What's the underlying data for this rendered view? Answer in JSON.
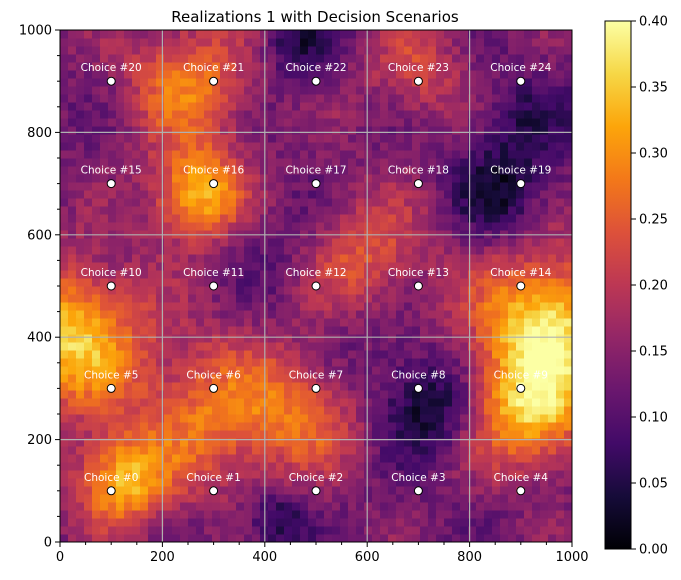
{
  "chart_data": {
    "type": "heatmap",
    "title": "Realizations 1 with Decision Scenarios",
    "xlim": [
      0,
      1000
    ],
    "ylim": [
      0,
      1000
    ],
    "xticks": [
      0,
      200,
      400,
      600,
      800,
      1000
    ],
    "yticks": [
      0,
      200,
      400,
      600,
      800,
      1000
    ],
    "grid": true,
    "colormap": "inferno",
    "colorbar": {
      "range": [
        0.0,
        0.4
      ],
      "ticks": [
        "0.00",
        "0.05",
        "0.10",
        "0.15",
        "0.20",
        "0.25",
        "0.30",
        "0.35",
        "0.40"
      ]
    },
    "hotspots": [
      {
        "x": 270,
        "y": 680,
        "r": 90,
        "value": 0.34
      },
      {
        "x": 20,
        "y": 400,
        "r": 140,
        "value": 0.35
      },
      {
        "x": 950,
        "y": 420,
        "r": 140,
        "value": 0.38
      },
      {
        "x": 120,
        "y": 120,
        "r": 90,
        "value": 0.33
      },
      {
        "x": 920,
        "y": 250,
        "r": 110,
        "value": 0.32
      },
      {
        "x": 300,
        "y": 250,
        "r": 150,
        "value": 0.27
      },
      {
        "x": 600,
        "y": 560,
        "r": 120,
        "value": 0.24
      },
      {
        "x": 250,
        "y": 900,
        "r": 120,
        "value": 0.28
      },
      {
        "x": 700,
        "y": 920,
        "r": 100,
        "value": 0.22
      },
      {
        "x": 480,
        "y": 250,
        "r": 110,
        "value": 0.24
      }
    ],
    "coldspots": [
      {
        "x": 720,
        "y": 270,
        "r": 90,
        "value": 0.02
      },
      {
        "x": 860,
        "y": 680,
        "r": 90,
        "value": 0.04
      },
      {
        "x": 420,
        "y": 40,
        "r": 60,
        "value": 0.03
      },
      {
        "x": 460,
        "y": 980,
        "r": 70,
        "value": 0.05
      },
      {
        "x": 900,
        "y": 820,
        "r": 100,
        "value": 0.07
      },
      {
        "x": 420,
        "y": 600,
        "r": 100,
        "value": 0.1
      },
      {
        "x": 620,
        "y": 380,
        "r": 100,
        "value": 0.1
      }
    ],
    "points": [
      {
        "label": "Choice #0",
        "x": 100,
        "y": 100
      },
      {
        "label": "Choice #1",
        "x": 300,
        "y": 100
      },
      {
        "label": "Choice #2",
        "x": 500,
        "y": 100
      },
      {
        "label": "Choice #3",
        "x": 700,
        "y": 100
      },
      {
        "label": "Choice #4",
        "x": 900,
        "y": 100
      },
      {
        "label": "Choice #5",
        "x": 100,
        "y": 300
      },
      {
        "label": "Choice #6",
        "x": 300,
        "y": 300
      },
      {
        "label": "Choice #7",
        "x": 500,
        "y": 300
      },
      {
        "label": "Choice #8",
        "x": 700,
        "y": 300
      },
      {
        "label": "Choice #9",
        "x": 900,
        "y": 300
      },
      {
        "label": "Choice #10",
        "x": 100,
        "y": 500
      },
      {
        "label": "Choice #11",
        "x": 300,
        "y": 500
      },
      {
        "label": "Choice #12",
        "x": 500,
        "y": 500
      },
      {
        "label": "Choice #13",
        "x": 700,
        "y": 500
      },
      {
        "label": "Choice #14",
        "x": 900,
        "y": 500
      },
      {
        "label": "Choice #15",
        "x": 100,
        "y": 700
      },
      {
        "label": "Choice #16",
        "x": 300,
        "y": 700
      },
      {
        "label": "Choice #17",
        "x": 500,
        "y": 700
      },
      {
        "label": "Choice #18",
        "x": 700,
        "y": 700
      },
      {
        "label": "Choice #19",
        "x": 900,
        "y": 700
      },
      {
        "label": "Choice #20",
        "x": 100,
        "y": 900
      },
      {
        "label": "Choice #21",
        "x": 300,
        "y": 900
      },
      {
        "label": "Choice #22",
        "x": 500,
        "y": 900
      },
      {
        "label": "Choice #23",
        "x": 700,
        "y": 900
      },
      {
        "label": "Choice #24",
        "x": 900,
        "y": 900
      }
    ]
  }
}
